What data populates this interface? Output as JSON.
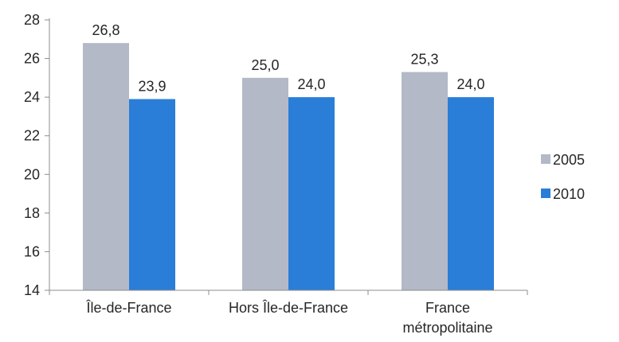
{
  "chart_data": {
    "type": "bar",
    "categories": [
      "Île-de-France",
      "Hors Île-de-France",
      "France métropolitaine"
    ],
    "category_lines": [
      [
        "Île-de-France"
      ],
      [
        "Hors Île-de-France"
      ],
      [
        "France",
        "métropolitaine"
      ]
    ],
    "series": [
      {
        "name": "2005",
        "values": [
          26.8,
          25.0,
          25.3
        ],
        "labels": [
          "26,8",
          "25,0",
          "25,3"
        ],
        "color": "#b3b9c6"
      },
      {
        "name": "2010",
        "values": [
          23.9,
          24.0,
          24.0
        ],
        "labels": [
          "23,9",
          "24,0",
          "24,0"
        ],
        "color": "#2a7ed8"
      }
    ],
    "y_ticks": [
      "14",
      "16",
      "18",
      "20",
      "22",
      "24",
      "26",
      "28"
    ],
    "ylim": [
      14,
      28
    ],
    "grid": false,
    "legend": "right",
    "title": "",
    "xlabel": "",
    "ylabel": ""
  }
}
